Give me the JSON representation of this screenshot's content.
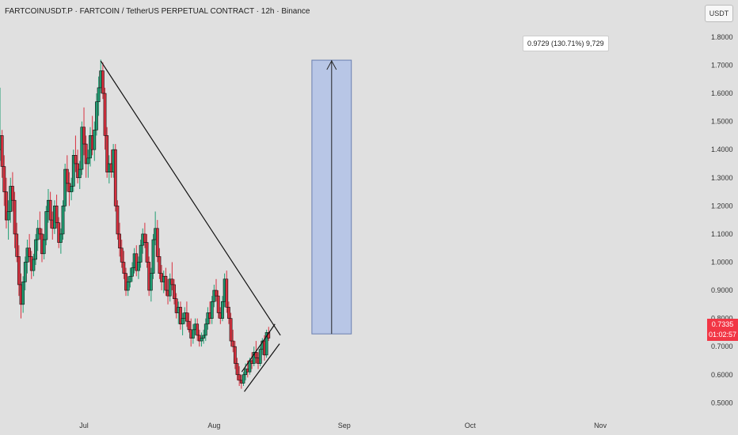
{
  "header": {
    "title": "FARTCOINUSDT.P · FARTCOIN / TetherUS PERPETUAL CONTRACT · 12h · Binance",
    "currency": "USDT"
  },
  "chart_data": {
    "type": "candlestick",
    "ylim": [
      0.47,
      1.87
    ],
    "y_ticks": [
      "1.8000",
      "1.7000",
      "1.6000",
      "1.5000",
      "1.4000",
      "1.3000",
      "1.2000",
      "1.1000",
      "1.0000",
      "0.9000",
      "0.8000",
      "0.7000",
      "0.6000",
      "0.5000"
    ],
    "x_ticks": [
      "Jul",
      "Aug",
      "Sep",
      "Oct",
      "Nov"
    ],
    "x_tick_days": [
      0,
      31,
      62,
      92,
      123
    ],
    "x_range_days": [
      -20,
      146
    ],
    "series": [
      {
        "values": [
          [
            -20,
            1.4,
            1.62,
            1.36,
            1.45
          ],
          [
            -19.5,
            1.45,
            1.47,
            1.3,
            1.34
          ],
          [
            -19,
            1.34,
            1.38,
            1.2,
            1.25
          ],
          [
            -18.5,
            1.25,
            1.3,
            1.12,
            1.15
          ],
          [
            -18,
            1.15,
            1.22,
            1.08,
            1.18
          ],
          [
            -17.5,
            1.18,
            1.3,
            1.14,
            1.27
          ],
          [
            -17,
            1.27,
            1.32,
            1.18,
            1.22
          ],
          [
            -16.5,
            1.22,
            1.25,
            1.05,
            1.1
          ],
          [
            -16,
            1.1,
            1.14,
            1.0,
            1.02
          ],
          [
            -15.5,
            1.02,
            1.06,
            0.88,
            0.92
          ],
          [
            -15,
            0.92,
            0.96,
            0.8,
            0.85
          ],
          [
            -14.5,
            0.85,
            0.95,
            0.82,
            0.93
          ],
          [
            -14,
            0.93,
            1.02,
            0.9,
            1.0
          ],
          [
            -13.5,
            1.0,
            1.08,
            0.96,
            1.05
          ],
          [
            -13,
            1.05,
            1.1,
            1.0,
            1.02
          ],
          [
            -12.5,
            1.02,
            1.04,
            0.94,
            0.97
          ],
          [
            -12,
            0.97,
            1.03,
            0.95,
            1.01
          ],
          [
            -11.5,
            1.01,
            1.1,
            0.99,
            1.08
          ],
          [
            -11,
            1.08,
            1.15,
            1.04,
            1.12
          ],
          [
            -10.5,
            1.12,
            1.18,
            1.08,
            1.1
          ],
          [
            -10,
            1.1,
            1.12,
            1.0,
            1.03
          ],
          [
            -9.5,
            1.03,
            1.1,
            1.01,
            1.08
          ],
          [
            -9,
            1.08,
            1.2,
            1.06,
            1.18
          ],
          [
            -8.5,
            1.18,
            1.26,
            1.14,
            1.22
          ],
          [
            -8,
            1.22,
            1.25,
            1.12,
            1.15
          ],
          [
            -7.5,
            1.15,
            1.18,
            1.08,
            1.12
          ],
          [
            -7,
            1.12,
            1.22,
            1.1,
            1.2
          ],
          [
            -6.5,
            1.2,
            1.24,
            1.12,
            1.14
          ],
          [
            -6,
            1.14,
            1.16,
            1.05,
            1.07
          ],
          [
            -5.5,
            1.07,
            1.12,
            1.03,
            1.1
          ],
          [
            -5,
            1.1,
            1.22,
            1.08,
            1.2
          ],
          [
            -4.5,
            1.2,
            1.35,
            1.18,
            1.33
          ],
          [
            -4,
            1.33,
            1.38,
            1.25,
            1.28
          ],
          [
            -3.5,
            1.28,
            1.32,
            1.2,
            1.25
          ],
          [
            -3,
            1.25,
            1.3,
            1.22,
            1.27
          ],
          [
            -2.5,
            1.27,
            1.4,
            1.25,
            1.38
          ],
          [
            -2,
            1.38,
            1.45,
            1.32,
            1.35
          ],
          [
            -1.5,
            1.35,
            1.4,
            1.28,
            1.3
          ],
          [
            -1,
            1.3,
            1.36,
            1.26,
            1.33
          ],
          [
            -0.5,
            1.33,
            1.5,
            1.31,
            1.48
          ],
          [
            0,
            1.48,
            1.55,
            1.38,
            1.42
          ],
          [
            0.5,
            1.42,
            1.45,
            1.3,
            1.35
          ],
          [
            1,
            1.35,
            1.4,
            1.3,
            1.37
          ],
          [
            1.5,
            1.37,
            1.48,
            1.34,
            1.45
          ],
          [
            2,
            1.45,
            1.52,
            1.38,
            1.4
          ],
          [
            2.5,
            1.4,
            1.5,
            1.36,
            1.47
          ],
          [
            3,
            1.47,
            1.6,
            1.45,
            1.57
          ],
          [
            3.5,
            1.57,
            1.66,
            1.52,
            1.62
          ],
          [
            4,
            1.62,
            1.72,
            1.6,
            1.68
          ],
          [
            4.5,
            1.68,
            1.71,
            1.58,
            1.6
          ],
          [
            5,
            1.6,
            1.62,
            1.4,
            1.45
          ],
          [
            5.5,
            1.45,
            1.48,
            1.3,
            1.32
          ],
          [
            6,
            1.32,
            1.38,
            1.28,
            1.35
          ],
          [
            6.5,
            1.35,
            1.4,
            1.3,
            1.32
          ],
          [
            7,
            1.32,
            1.42,
            1.3,
            1.4
          ],
          [
            7.5,
            1.4,
            1.42,
            1.18,
            1.2
          ],
          [
            8,
            1.2,
            1.22,
            1.08,
            1.1
          ],
          [
            8.5,
            1.1,
            1.14,
            1.02,
            1.05
          ],
          [
            9,
            1.05,
            1.08,
            0.98,
            1.0
          ],
          [
            9.5,
            1.0,
            1.04,
            0.94,
            0.96
          ],
          [
            10,
            0.96,
            0.98,
            0.88,
            0.9
          ],
          [
            10.5,
            0.9,
            0.95,
            0.88,
            0.93
          ],
          [
            11,
            0.93,
            0.98,
            0.91,
            0.95
          ],
          [
            11.5,
            0.95,
            1.0,
            0.93,
            0.98
          ],
          [
            12,
            0.98,
            1.05,
            0.96,
            1.03
          ],
          [
            12.5,
            1.03,
            1.06,
            0.95,
            0.97
          ],
          [
            13,
            0.97,
            1.02,
            0.94,
            1.0
          ],
          [
            13.5,
            1.0,
            1.08,
            0.98,
            1.06
          ],
          [
            14,
            1.06,
            1.12,
            1.03,
            1.1
          ],
          [
            14.5,
            1.1,
            1.14,
            1.05,
            1.07
          ],
          [
            15,
            1.07,
            1.1,
            0.98,
            1.0
          ],
          [
            15.5,
            1.0,
            1.02,
            0.88,
            0.9
          ],
          [
            16,
            0.9,
            0.98,
            0.86,
            0.96
          ],
          [
            16.5,
            0.96,
            1.1,
            0.94,
            1.08
          ],
          [
            17,
            1.08,
            1.18,
            1.06,
            1.12
          ],
          [
            17.5,
            1.12,
            1.15,
            1.0,
            1.02
          ],
          [
            18,
            1.02,
            1.05,
            0.94,
            0.96
          ],
          [
            18.5,
            0.96,
            0.99,
            0.9,
            0.93
          ],
          [
            19,
            0.93,
            0.97,
            0.89,
            0.95
          ],
          [
            19.5,
            0.95,
            0.98,
            0.88,
            0.9
          ],
          [
            20,
            0.9,
            0.94,
            0.85,
            0.88
          ],
          [
            20.5,
            0.88,
            0.96,
            0.86,
            0.94
          ],
          [
            21,
            0.94,
            1.0,
            0.9,
            0.92
          ],
          [
            21.5,
            0.92,
            0.94,
            0.85,
            0.87
          ],
          [
            22,
            0.87,
            0.89,
            0.8,
            0.82
          ],
          [
            22.5,
            0.82,
            0.86,
            0.78,
            0.84
          ],
          [
            23,
            0.84,
            0.86,
            0.76,
            0.78
          ],
          [
            23.5,
            0.78,
            0.82,
            0.74,
            0.8
          ],
          [
            24,
            0.8,
            0.84,
            0.78,
            0.82
          ],
          [
            24.5,
            0.82,
            0.86,
            0.77,
            0.79
          ],
          [
            25,
            0.79,
            0.82,
            0.75,
            0.76
          ],
          [
            25.5,
            0.76,
            0.8,
            0.7,
            0.73
          ],
          [
            26,
            0.73,
            0.78,
            0.71,
            0.76
          ],
          [
            26.5,
            0.76,
            0.8,
            0.74,
            0.78
          ],
          [
            27,
            0.78,
            0.8,
            0.72,
            0.74
          ],
          [
            27.5,
            0.74,
            0.76,
            0.7,
            0.72
          ],
          [
            28,
            0.72,
            0.75,
            0.7,
            0.73
          ],
          [
            28.5,
            0.73,
            0.76,
            0.71,
            0.74
          ],
          [
            29,
            0.74,
            0.8,
            0.72,
            0.78
          ],
          [
            29.5,
            0.78,
            0.84,
            0.76,
            0.82
          ],
          [
            30,
            0.82,
            0.86,
            0.78,
            0.8
          ],
          [
            30.5,
            0.8,
            0.88,
            0.78,
            0.86
          ],
          [
            31,
            0.86,
            0.92,
            0.84,
            0.9
          ],
          [
            31.5,
            0.9,
            0.94,
            0.86,
            0.88
          ],
          [
            32,
            0.88,
            0.9,
            0.8,
            0.82
          ],
          [
            32.5,
            0.82,
            0.84,
            0.78,
            0.8
          ],
          [
            33,
            0.8,
            0.88,
            0.79,
            0.86
          ],
          [
            33.5,
            0.86,
            0.96,
            0.84,
            0.94
          ],
          [
            34,
            0.94,
            0.97,
            0.82,
            0.84
          ],
          [
            34.5,
            0.84,
            0.86,
            0.78,
            0.8
          ],
          [
            35,
            0.8,
            0.82,
            0.7,
            0.72
          ],
          [
            35.5,
            0.72,
            0.76,
            0.68,
            0.7
          ],
          [
            36,
            0.7,
            0.72,
            0.62,
            0.64
          ],
          [
            36.5,
            0.64,
            0.66,
            0.58,
            0.6
          ],
          [
            37,
            0.6,
            0.63,
            0.56,
            0.58
          ],
          [
            37.5,
            0.58,
            0.6,
            0.55,
            0.57
          ],
          [
            38,
            0.57,
            0.61,
            0.56,
            0.6
          ],
          [
            38.5,
            0.6,
            0.64,
            0.58,
            0.62
          ],
          [
            39,
            0.62,
            0.65,
            0.59,
            0.61
          ],
          [
            39.5,
            0.61,
            0.66,
            0.6,
            0.65
          ],
          [
            40,
            0.65,
            0.68,
            0.62,
            0.64
          ],
          [
            40.5,
            0.64,
            0.7,
            0.63,
            0.68
          ],
          [
            41,
            0.68,
            0.72,
            0.64,
            0.66
          ],
          [
            41.5,
            0.66,
            0.68,
            0.62,
            0.64
          ],
          [
            42,
            0.64,
            0.7,
            0.63,
            0.69
          ],
          [
            42.5,
            0.69,
            0.73,
            0.67,
            0.72
          ],
          [
            43,
            0.72,
            0.74,
            0.65,
            0.67
          ],
          [
            43.5,
            0.67,
            0.76,
            0.66,
            0.75
          ],
          [
            44,
            0.75,
            0.77,
            0.72,
            0.73
          ]
        ]
      }
    ],
    "target_annotation": "0.9729 (130.71%) 9,729",
    "target_zone": {
      "x_start": 54.3,
      "x_end": 63.7,
      "y_low": 0.745,
      "y_high": 1.718
    },
    "trendline": {
      "x1": 4,
      "y1": 1.715,
      "x2": 46.8,
      "y2": 0.74
    },
    "channel": {
      "upper": {
        "x1": 37.6,
        "y1": 0.61,
        "x2": 45.5,
        "y2": 0.78
      },
      "lower": {
        "x1": 38.2,
        "y1": 0.54,
        "x2": 46.6,
        "y2": 0.71
      }
    },
    "last_price": "0.7335",
    "countdown": "01:02:57"
  }
}
